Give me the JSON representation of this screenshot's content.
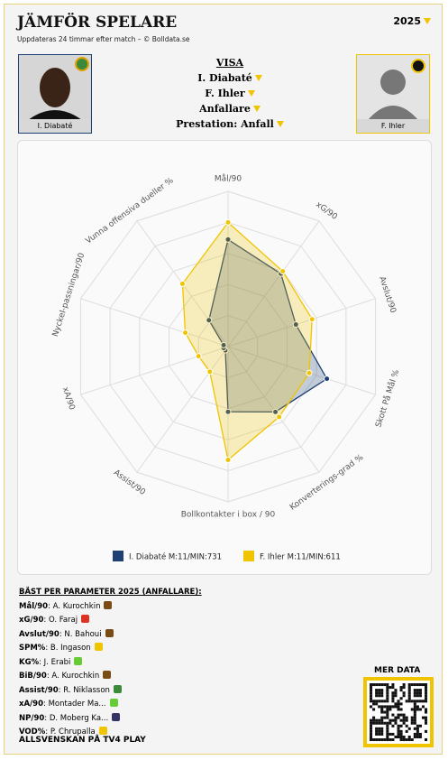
{
  "header": {
    "title": "JÄMFÖR SPELARE",
    "subtitle": "Uppdateras 24 timmar efter match – © Bolldata.se",
    "year": "2025"
  },
  "players": [
    "I. Diabaté",
    "F. Ihler"
  ],
  "controls": {
    "heading": "VISA",
    "options": [
      "I. Diabaté",
      "F. Ihler",
      "Anfallare",
      "Prestation: Anfall"
    ]
  },
  "chart_data": {
    "type": "radar",
    "categories": [
      "Mål/90",
      "xG/90",
      "Avslut/90",
      "Skott På Mål %",
      "Konverterings-grad %",
      "Bollkontakter i box / 90",
      "Assist/90",
      "xA/90",
      "Nyckel-passningar/90",
      "Vunna offensiva dueller %"
    ],
    "series": [
      {
        "name": "I. Diabaté M:11/MIN:731",
        "color": "#1d3f73",
        "values": [
          69,
          58,
          46,
          67,
          52,
          42,
          3,
          3,
          3,
          21
        ]
      },
      {
        "name": "F. Ihler M:11/MIN:611",
        "color": "#f0c400",
        "values": [
          80,
          60,
          57,
          55,
          56,
          73,
          20,
          20,
          29,
          50
        ]
      }
    ],
    "ylim": [
      0,
      100
    ],
    "yticks": [
      20,
      40,
      60,
      80,
      100
    ],
    "grid": true,
    "legend": "bottom"
  },
  "best": {
    "heading": "BÄST PER PARAMETER 2025 (ANFALLARE):",
    "items": [
      {
        "param": "Mål/90",
        "player": "A. Kurochkin"
      },
      {
        "param": "xG/90",
        "player": "O. Faraj"
      },
      {
        "param": "Avslut/90",
        "player": "N. Bahoui"
      },
      {
        "param": "SPM%",
        "player": "B. Ingason"
      },
      {
        "param": "KG%",
        "player": "J. Erabi"
      },
      {
        "param": "BiB/90",
        "player": "A. Kurochkin"
      },
      {
        "param": "Assist/90",
        "player": "R. Niklasson"
      },
      {
        "param": "xA/90",
        "player": "Montader Ma..."
      },
      {
        "param": "NP/90",
        "player": "D. Moberg Ka..."
      },
      {
        "param": "VOD%",
        "player": "P. Chrupalla"
      }
    ]
  },
  "more": {
    "label": "MER DATA"
  },
  "footer": {
    "text": "ALLSVENSKAN PÅ TV4 PLAY"
  }
}
